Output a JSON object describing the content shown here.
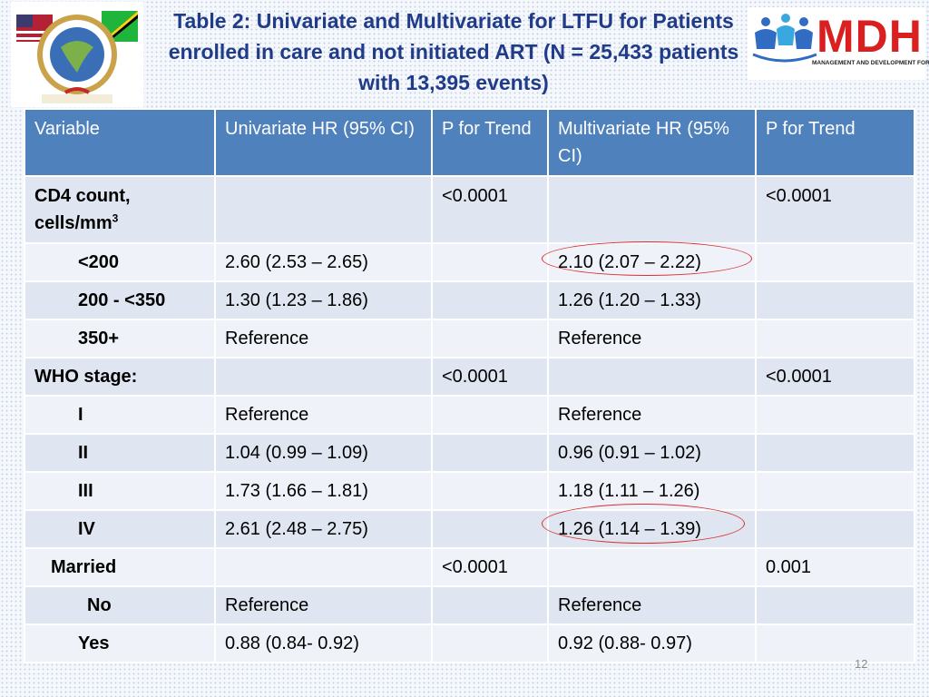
{
  "title": "Table 2: Univariate and Multivariate for LTFU for Patients enrolled in care and not initiated ART (N = 25,433 patients with 13,395 events)",
  "logos": {
    "left": "seal-logo",
    "right_text": "MDH",
    "right_subtitle": "MANAGEMENT AND DEVELOPMENT FOR HEALTH"
  },
  "table": {
    "headers": [
      "Variable",
      "Univariate HR (95% CI)",
      "P for Trend",
      "Multivariate HR (95% CI)",
      "P for Trend"
    ],
    "rows": [
      {
        "variable": "CD4 count, cells/mm",
        "sup": "3",
        "uni": "",
        "p1": "<0.0001",
        "multi": "",
        "p2": "<0.0001"
      },
      {
        "variable": "<200",
        "uni": "2.60 (2.53 – 2.65)",
        "p1": "",
        "multi": "2.10 (2.07 – 2.22)",
        "p2": ""
      },
      {
        "variable": "200 - <350",
        "uni": "1.30 (1.23 – 1.86)",
        "p1": "",
        "multi": "1.26 (1.20 – 1.33)",
        "p2": ""
      },
      {
        "variable": "350+",
        "uni": "Reference",
        "p1": "",
        "multi": "Reference",
        "p2": ""
      },
      {
        "variable": "WHO stage:",
        "uni": "",
        "p1": "<0.0001",
        "multi": "",
        "p2": "<0.0001"
      },
      {
        "variable": "I",
        "uni": "Reference",
        "p1": "",
        "multi": "Reference",
        "p2": ""
      },
      {
        "variable": "II",
        "uni": "1.04 (0.99 – 1.09)",
        "p1": "",
        "multi": "0.96 (0.91 – 1.02)",
        "p2": ""
      },
      {
        "variable": "III",
        "uni": "1.73 (1.66 – 1.81)",
        "p1": "",
        "multi": "1.18 (1.11 – 1.26)",
        "p2": ""
      },
      {
        "variable": "IV",
        "uni": "2.61 (2.48 – 2.75)",
        "p1": "",
        "multi": "1.26 (1.14 – 1.39)",
        "p2": ""
      },
      {
        "variable": "Married",
        "uni": "",
        "p1": "<0.0001",
        "multi": "",
        "p2": "0.001"
      },
      {
        "variable": "No",
        "uni": "Reference",
        "p1": "",
        "multi": "Reference",
        "p2": ""
      },
      {
        "variable": "Yes",
        "uni": "0.88 (0.84- 0.92)",
        "p1": "",
        "multi": "0.92 (0.88- 0.97)",
        "p2": ""
      }
    ]
  },
  "highlight_color": "#d92f2f",
  "header_color": "#4f81bd",
  "page_number": "12"
}
